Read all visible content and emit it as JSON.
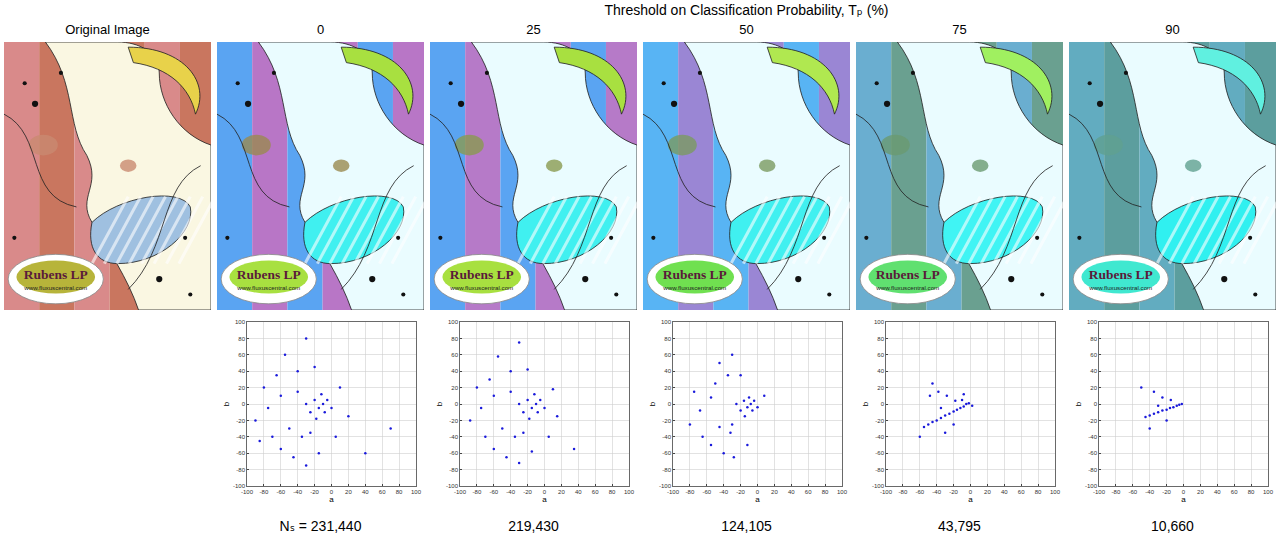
{
  "figure": {
    "title": "Threshold on Classification Probability, Tₚ (%)",
    "columns": [
      {
        "label": "Original Image"
      },
      {
        "threshold": 0
      },
      {
        "threshold": 25
      },
      {
        "threshold": 50
      },
      {
        "threshold": 75
      },
      {
        "threshold": 90
      }
    ],
    "artwork": {
      "logo": "Rubens LP",
      "url": "www.fluxuscentral.com"
    },
    "count_prefix": "Nₛ = "
  },
  "chart_data": [
    {
      "type": "scatter",
      "xlabel": "a",
      "ylabel": "b",
      "color": "#1a1adb",
      "grid": true,
      "xlim": [
        -100,
        100
      ],
      "ylim": [
        -100,
        100
      ],
      "xticks": [
        -100,
        -80,
        -60,
        -40,
        -20,
        0,
        20,
        40,
        60,
        80,
        100
      ],
      "yticks": [
        -100,
        -80,
        -60,
        -40,
        -20,
        0,
        20,
        40,
        60,
        80,
        100
      ],
      "count": {
        "value": 231440,
        "label": "231,440"
      },
      "x": [
        -10,
        -5,
        -15,
        -20,
        -8,
        -25,
        -12,
        0,
        -30,
        -18,
        -40,
        -55,
        -30,
        -80,
        -90,
        -70,
        -60,
        -45,
        -30,
        -15,
        -50,
        -35,
        -60,
        -75,
        10,
        20,
        40,
        5,
        -20,
        70,
        -65,
        -85,
        -25,
        -40
      ],
      "y": [
        0,
        5,
        -5,
        5,
        -10,
        -10,
        12,
        -5,
        0,
        -18,
        40,
        60,
        80,
        20,
        -20,
        -40,
        -55,
        -65,
        -75,
        -60,
        -30,
        -40,
        10,
        -5,
        20,
        -15,
        -60,
        -40,
        45,
        -30,
        35,
        -45,
        -35,
        15
      ]
    },
    {
      "type": "scatter",
      "xlabel": "a",
      "ylabel": "b",
      "color": "#1a1adb",
      "grid": true,
      "xlim": [
        -100,
        100
      ],
      "ylim": [
        -100,
        100
      ],
      "xticks": [
        -100,
        -80,
        -60,
        -40,
        -20,
        0,
        20,
        40,
        60,
        80,
        100
      ],
      "yticks": [
        -100,
        -80,
        -60,
        -40,
        -20,
        0,
        20,
        40,
        60,
        80,
        100
      ],
      "count": {
        "value": 219430,
        "label": "219,430"
      },
      "x": [
        -10,
        -5,
        -15,
        -20,
        -8,
        -25,
        -12,
        0,
        -30,
        -18,
        -40,
        -55,
        -30,
        -80,
        -88,
        -70,
        -60,
        -45,
        -30,
        -15,
        -50,
        -35,
        -60,
        -75,
        10,
        15,
        35,
        5,
        -20,
        -65,
        -25,
        -40
      ],
      "y": [
        0,
        5,
        -5,
        5,
        -10,
        -10,
        12,
        -5,
        0,
        -18,
        40,
        58,
        75,
        20,
        -20,
        -40,
        -55,
        -65,
        -72,
        -58,
        -30,
        -40,
        10,
        -5,
        18,
        -15,
        -55,
        -40,
        42,
        30,
        -35,
        15
      ]
    },
    {
      "type": "scatter",
      "xlabel": "a",
      "ylabel": "b",
      "color": "#1a1adb",
      "grid": true,
      "xlim": [
        -100,
        100
      ],
      "ylim": [
        -100,
        100
      ],
      "xticks": [
        -100,
        -80,
        -60,
        -40,
        -20,
        0,
        20,
        40,
        60,
        80,
        100
      ],
      "yticks": [
        -100,
        -80,
        -60,
        -40,
        -20,
        0,
        20,
        40,
        60,
        80,
        100
      ],
      "count": {
        "value": 124105,
        "label": "124,105"
      },
      "x": [
        -8,
        -4,
        -12,
        -16,
        -6,
        -20,
        -10,
        0,
        -25,
        -15,
        -35,
        -45,
        -30,
        -75,
        -80,
        -65,
        -55,
        -40,
        -28,
        -12,
        -45,
        -32,
        -55,
        -68,
        8,
        -20,
        -50,
        -30
      ],
      "y": [
        0,
        4,
        -4,
        4,
        -8,
        -8,
        8,
        -4,
        0,
        -15,
        35,
        50,
        60,
        15,
        -25,
        -40,
        -50,
        -60,
        -65,
        -50,
        -28,
        -35,
        8,
        -8,
        10,
        35,
        25,
        -25
      ]
    },
    {
      "type": "scatter",
      "xlabel": "a",
      "ylabel": "b",
      "color": "#1a1adb",
      "grid": true,
      "xlim": [
        -100,
        100
      ],
      "ylim": [
        -100,
        100
      ],
      "xticks": [
        -100,
        -80,
        -60,
        -40,
        -20,
        0,
        20,
        40,
        60,
        80,
        100
      ],
      "yticks": [
        -100,
        -80,
        -60,
        -40,
        -20,
        0,
        20,
        40,
        60,
        80,
        100
      ],
      "count": {
        "value": 43795,
        "label": "43,795"
      },
      "x": [
        -5,
        -2,
        -8,
        -12,
        -16,
        -20,
        -25,
        -30,
        -35,
        -40,
        -45,
        -50,
        -55,
        -10,
        -18,
        -28,
        -38,
        -48,
        -60,
        -30,
        -20,
        -45,
        2,
        -8,
        -35
      ],
      "y": [
        0,
        1,
        -3,
        -5,
        -7,
        -9,
        -12,
        -14,
        -17,
        -20,
        -22,
        -25,
        -28,
        5,
        4,
        10,
        15,
        10,
        -40,
        -35,
        -25,
        25,
        -2,
        12,
        -5
      ]
    },
    {
      "type": "scatter",
      "xlabel": "a",
      "ylabel": "b",
      "color": "#1a1adb",
      "grid": true,
      "xlim": [
        -100,
        100
      ],
      "ylim": [
        -100,
        100
      ],
      "xticks": [
        -100,
        -80,
        -60,
        -40,
        -20,
        0,
        20,
        40,
        60,
        80,
        100
      ],
      "yticks": [
        -100,
        -80,
        -60,
        -40,
        -20,
        0,
        20,
        40,
        60,
        80,
        100
      ],
      "count": {
        "value": 10660,
        "label": "10,660"
      },
      "x": [
        -2,
        -5,
        -8,
        -12,
        -16,
        -20,
        -25,
        -30,
        -35,
        -40,
        -45,
        -15,
        -25,
        -35,
        -50,
        -40,
        -20,
        -30
      ],
      "y": [
        0,
        -1,
        -2,
        -4,
        -5,
        -7,
        -8,
        -10,
        -12,
        -14,
        -16,
        5,
        8,
        15,
        20,
        -30,
        -20,
        -2
      ]
    }
  ]
}
